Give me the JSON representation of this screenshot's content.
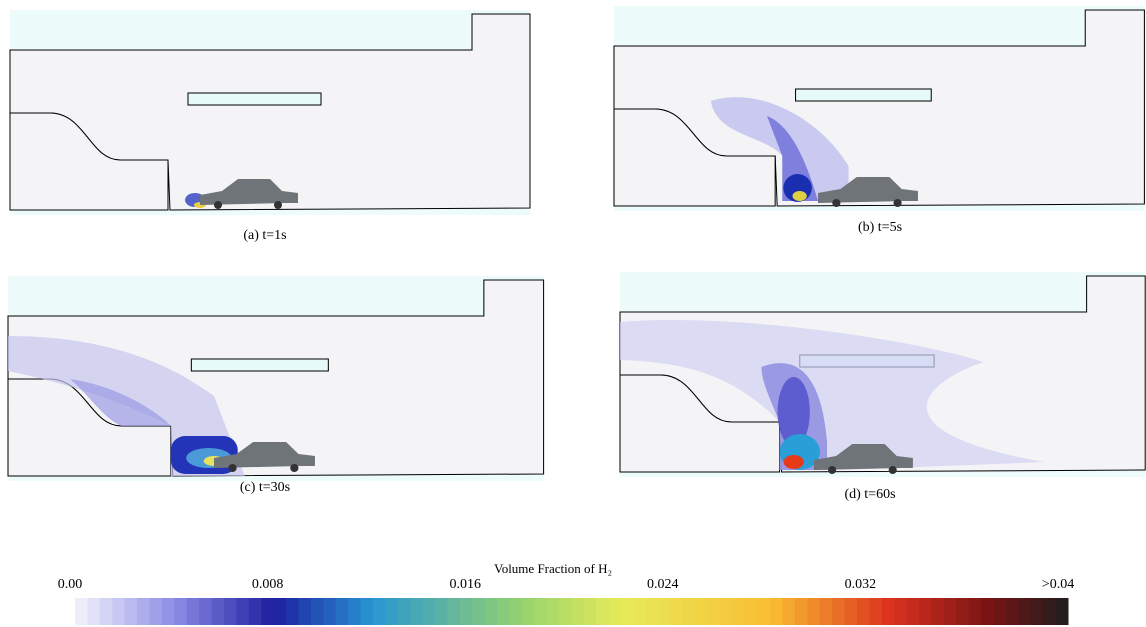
{
  "panels": [
    {
      "caption": "(a) t=1s"
    },
    {
      "caption": "(b) t=5s"
    },
    {
      "caption": "(c) t=30s"
    },
    {
      "caption": "(d) t=60s"
    }
  ],
  "colorbar": {
    "title": "Volume Fraction of H₂",
    "ticks": [
      "0.00",
      "0.008",
      "0.016",
      "0.024",
      "0.032",
      ">0.04"
    ]
  }
}
